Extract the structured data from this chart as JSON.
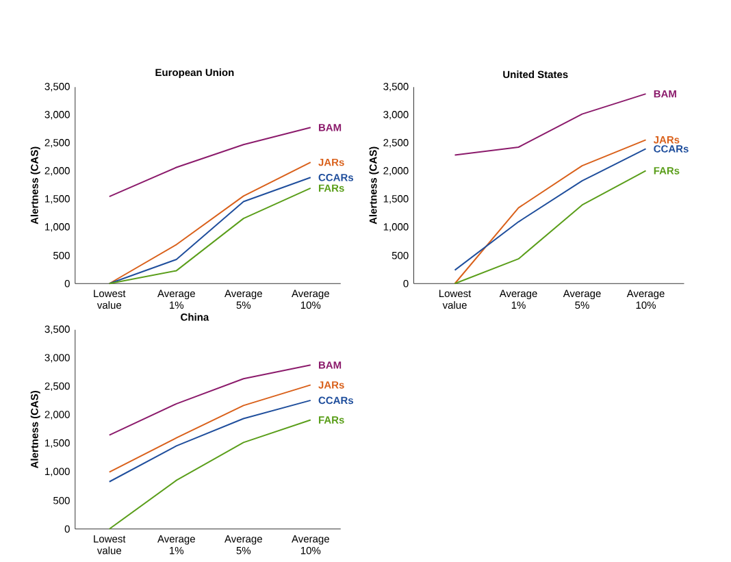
{
  "chart_data": [
    {
      "type": "line",
      "title": "European Union",
      "ylabel": "Alertness (CAS)",
      "categories": [
        "Lowest value",
        "Average 1%",
        "Average 5%",
        "Average 10%"
      ],
      "ylim": [
        0,
        3500
      ],
      "yticks": [
        {
          "value": 0,
          "label": "0"
        },
        {
          "value": 500,
          "label": "500"
        },
        {
          "value": 1000,
          "label": "1,000"
        },
        {
          "value": 1500,
          "label": "1,500"
        },
        {
          "value": 2000,
          "label": "2,000"
        },
        {
          "value": 2500,
          "label": "2,500"
        },
        {
          "value": 3000,
          "label": "3,000"
        },
        {
          "value": 3500,
          "label": "3,500"
        }
      ],
      "marker": "none",
      "series": [
        {
          "name": "BAM",
          "color": "#8b1a6b",
          "values": [
            1550,
            2070,
            2475,
            2780
          ]
        },
        {
          "name": "JARs",
          "color": "#d9601a",
          "values": [
            0,
            695,
            1560,
            2160
          ]
        },
        {
          "name": "CCARs",
          "color": "#1f4e9c",
          "values": [
            0,
            430,
            1460,
            1890
          ]
        },
        {
          "name": "FARs",
          "color": "#5a9e1a",
          "values": [
            0,
            230,
            1160,
            1700
          ]
        }
      ]
    },
    {
      "type": "line",
      "title": "United States",
      "ylabel": "Alertness (CAS)",
      "categories": [
        "Lowest value",
        "Average 1%",
        "Average 5%",
        "Average 10%"
      ],
      "ylim": [
        0,
        3500
      ],
      "yticks": [
        {
          "value": 0,
          "label": "0"
        },
        {
          "value": 500,
          "label": "500"
        },
        {
          "value": 1000,
          "label": "1,000"
        },
        {
          "value": 1500,
          "label": "1,500"
        },
        {
          "value": 2000,
          "label": "2,000"
        },
        {
          "value": 2500,
          "label": "2,500"
        },
        {
          "value": 3000,
          "label": "3,000"
        },
        {
          "value": 3500,
          "label": "3,500"
        }
      ],
      "marker": "none",
      "series": [
        {
          "name": "BAM",
          "color": "#8b1a6b",
          "values": [
            2290,
            2430,
            3020,
            3380
          ]
        },
        {
          "name": "JARs",
          "color": "#d9601a",
          "values": [
            0,
            1350,
            2100,
            2560
          ]
        },
        {
          "name": "CCARs",
          "color": "#1f4e9c",
          "values": [
            240,
            1100,
            1830,
            2400
          ]
        },
        {
          "name": "FARs",
          "color": "#5a9e1a",
          "values": [
            0,
            440,
            1400,
            2010
          ]
        }
      ]
    },
    {
      "type": "line",
      "title": "China",
      "ylabel": "Alertness (CAS)",
      "categories": [
        "Lowest value",
        "Average 1%",
        "Average 5%",
        "Average 10%"
      ],
      "ylim": [
        0,
        3500
      ],
      "yticks": [
        {
          "value": 0,
          "label": "0"
        },
        {
          "value": 500,
          "label": "500"
        },
        {
          "value": 1000,
          "label": "1,000"
        },
        {
          "value": 1500,
          "label": "1,500"
        },
        {
          "value": 2000,
          "label": "2,000"
        },
        {
          "value": 2500,
          "label": "2,500"
        },
        {
          "value": 3000,
          "label": "3,000"
        },
        {
          "value": 3500,
          "label": "3,500"
        }
      ],
      "marker": "none",
      "series": [
        {
          "name": "BAM",
          "color": "#8b1a6b",
          "values": [
            1650,
            2200,
            2640,
            2880
          ]
        },
        {
          "name": "JARs",
          "color": "#d9601a",
          "values": [
            1000,
            1600,
            2170,
            2530
          ]
        },
        {
          "name": "CCARs",
          "color": "#1f4e9c",
          "values": [
            830,
            1460,
            1940,
            2260
          ]
        },
        {
          "name": "FARs",
          "color": "#5a9e1a",
          "values": [
            0,
            855,
            1520,
            1915
          ]
        }
      ]
    }
  ]
}
